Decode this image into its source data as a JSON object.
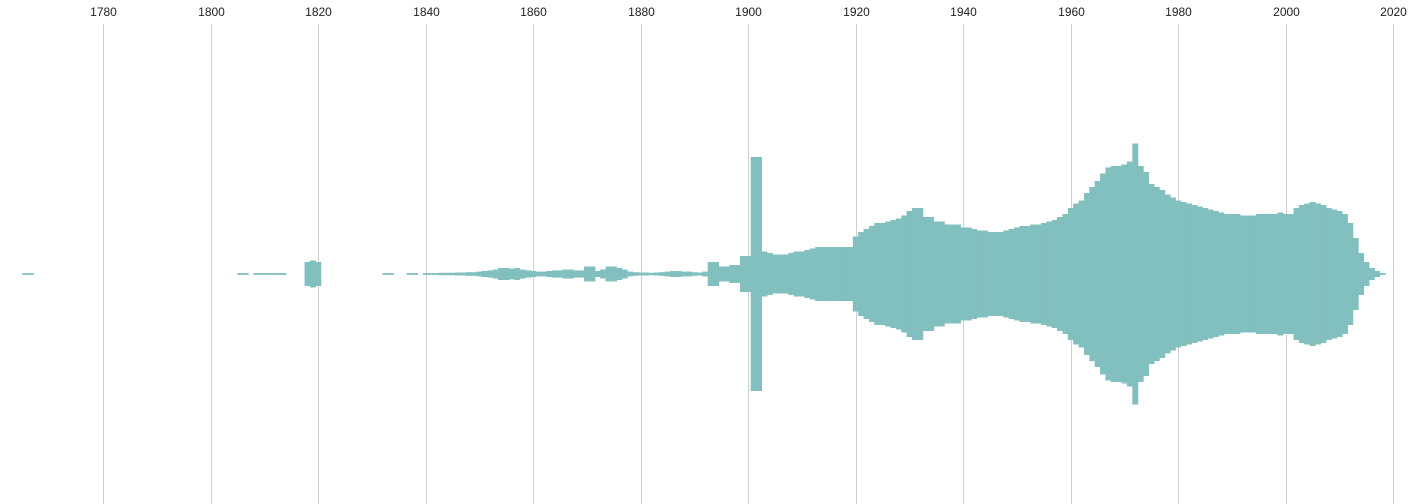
{
  "chart_data": {
    "type": "area",
    "title": "",
    "xlabel": "",
    "ylabel": "",
    "orientation": "symmetric-streamgraph",
    "xlim": [
      1760,
      2022
    ],
    "x_ticks": [
      1780,
      1800,
      1820,
      1840,
      1860,
      1880,
      1900,
      1920,
      1940,
      1960,
      1980,
      2000,
      2020
    ],
    "grid": true,
    "color": "#82bfbf",
    "series": [
      {
        "values": [
          [
            1765.5,
            0.3
          ],
          [
            1766.5,
            0.3
          ],
          [
            1805.5,
            0.3
          ],
          [
            1806.5,
            0.3
          ],
          [
            1808.5,
            0.3
          ],
          [
            1809.5,
            0.3
          ],
          [
            1810.5,
            0.3
          ],
          [
            1811.5,
            0.3
          ],
          [
            1812.5,
            0.3
          ],
          [
            1813.5,
            0.3
          ],
          [
            1818,
            4.0
          ],
          [
            1819,
            4.5
          ],
          [
            1820,
            4.0
          ],
          [
            1832.5,
            0.3
          ],
          [
            1833.5,
            0.3
          ],
          [
            1837,
            0.3
          ],
          [
            1838,
            0.3
          ],
          [
            1840,
            0.3
          ],
          [
            1841,
            0.3
          ],
          [
            1842,
            0.3
          ],
          [
            1843,
            0.4
          ],
          [
            1844,
            0.4
          ],
          [
            1845,
            0.4
          ],
          [
            1846,
            0.5
          ],
          [
            1847,
            0.5
          ],
          [
            1848,
            0.6
          ],
          [
            1849,
            0.6
          ],
          [
            1850,
            0.8
          ],
          [
            1851,
            1.0
          ],
          [
            1852,
            1.2
          ],
          [
            1853,
            1.5
          ],
          [
            1854,
            2.0
          ],
          [
            1855,
            2.0
          ],
          [
            1856,
            1.8
          ],
          [
            1857,
            2.0
          ],
          [
            1858,
            1.5
          ],
          [
            1859,
            1.2
          ],
          [
            1860,
            1.0
          ],
          [
            1861,
            0.8
          ],
          [
            1862,
            0.8
          ],
          [
            1863,
            1.0
          ],
          [
            1864,
            1.2
          ],
          [
            1865,
            1.2
          ],
          [
            1866,
            1.5
          ],
          [
            1867,
            1.5
          ],
          [
            1868,
            1.2
          ],
          [
            1869,
            1.2
          ],
          [
            1870,
            2.5
          ],
          [
            1871,
            2.5
          ],
          [
            1872,
            1.0
          ],
          [
            1873,
            1.5
          ],
          [
            1874,
            2.5
          ],
          [
            1875,
            2.5
          ],
          [
            1876,
            2.0
          ],
          [
            1877,
            1.5
          ],
          [
            1878,
            0.8
          ],
          [
            1879,
            0.6
          ],
          [
            1880,
            0.5
          ],
          [
            1881,
            0.5
          ],
          [
            1882,
            0.4
          ],
          [
            1883,
            0.5
          ],
          [
            1884,
            0.6
          ],
          [
            1885,
            0.8
          ],
          [
            1886,
            1.0
          ],
          [
            1887,
            1.0
          ],
          [
            1888,
            0.8
          ],
          [
            1889,
            0.8
          ],
          [
            1890,
            0.6
          ],
          [
            1891,
            0.5
          ],
          [
            1892,
            0.8
          ],
          [
            1893,
            4.0
          ],
          [
            1894,
            4.0
          ],
          [
            1895,
            2.5
          ],
          [
            1896,
            2.5
          ],
          [
            1897,
            3.0
          ],
          [
            1898,
            3.0
          ],
          [
            1899,
            6.0
          ],
          [
            1900,
            6.0
          ],
          [
            1901,
            39.0
          ],
          [
            1902,
            39.0
          ],
          [
            1903,
            7.5
          ],
          [
            1904,
            7.0
          ],
          [
            1905,
            6.5
          ],
          [
            1906,
            6.5
          ],
          [
            1907,
            6.5
          ],
          [
            1908,
            7.0
          ],
          [
            1909,
            7.5
          ],
          [
            1910,
            7.5
          ],
          [
            1911,
            8.0
          ],
          [
            1912,
            8.5
          ],
          [
            1913,
            9.0
          ],
          [
            1914,
            9.0
          ],
          [
            1915,
            9.0
          ],
          [
            1916,
            9.0
          ],
          [
            1917,
            9.0
          ],
          [
            1918,
            9.0
          ],
          [
            1919,
            9.0
          ],
          [
            1920,
            12.5
          ],
          [
            1921,
            14.0
          ],
          [
            1922,
            15.0
          ],
          [
            1923,
            16.0
          ],
          [
            1924,
            17.0
          ],
          [
            1925,
            17.0
          ],
          [
            1926,
            17.5
          ],
          [
            1927,
            18.0
          ],
          [
            1928,
            18.5
          ],
          [
            1929,
            19.5
          ],
          [
            1930,
            21.0
          ],
          [
            1931,
            22.0
          ],
          [
            1932,
            22.0
          ],
          [
            1933,
            19.0
          ],
          [
            1934,
            19.0
          ],
          [
            1935,
            17.5
          ],
          [
            1936,
            17.5
          ],
          [
            1937,
            16.5
          ],
          [
            1938,
            16.5
          ],
          [
            1939,
            16.5
          ],
          [
            1940,
            15.5
          ],
          [
            1941,
            15.5
          ],
          [
            1942,
            15.0
          ],
          [
            1943,
            14.5
          ],
          [
            1944,
            14.5
          ],
          [
            1945,
            14.0
          ],
          [
            1946,
            14.0
          ],
          [
            1947,
            14.0
          ],
          [
            1948,
            14.5
          ],
          [
            1949,
            15.0
          ],
          [
            1950,
            15.5
          ],
          [
            1951,
            16.0
          ],
          [
            1952,
            16.0
          ],
          [
            1953,
            16.5
          ],
          [
            1954,
            16.5
          ],
          [
            1955,
            17.0
          ],
          [
            1956,
            17.5
          ],
          [
            1957,
            18.0
          ],
          [
            1958,
            19.0
          ],
          [
            1959,
            20.0
          ],
          [
            1960,
            22.0
          ],
          [
            1961,
            23.5
          ],
          [
            1962,
            24.5
          ],
          [
            1963,
            27.0
          ],
          [
            1964,
            29.0
          ],
          [
            1965,
            31.0
          ],
          [
            1966,
            33.5
          ],
          [
            1967,
            35.5
          ],
          [
            1968,
            36.0
          ],
          [
            1969,
            36.0
          ],
          [
            1970,
            36.5
          ],
          [
            1971,
            37.5
          ],
          [
            1972,
            43.5
          ],
          [
            1973,
            36.0
          ],
          [
            1974,
            34.0
          ],
          [
            1975,
            30.0
          ],
          [
            1976,
            29.0
          ],
          [
            1977,
            28.0
          ],
          [
            1978,
            26.5
          ],
          [
            1979,
            25.5
          ],
          [
            1980,
            24.5
          ],
          [
            1981,
            24.0
          ],
          [
            1982,
            23.5
          ],
          [
            1983,
            23.0
          ],
          [
            1984,
            22.5
          ],
          [
            1985,
            22.0
          ],
          [
            1986,
            21.5
          ],
          [
            1987,
            21.0
          ],
          [
            1988,
            20.5
          ],
          [
            1989,
            20.0
          ],
          [
            1990,
            20.0
          ],
          [
            1991,
            20.0
          ],
          [
            1992,
            19.5
          ],
          [
            1993,
            19.5
          ],
          [
            1994,
            19.5
          ],
          [
            1995,
            20.0
          ],
          [
            1996,
            20.0
          ],
          [
            1997,
            20.0
          ],
          [
            1998,
            20.0
          ],
          [
            1999,
            20.5
          ],
          [
            2000,
            20.0
          ],
          [
            2001,
            20.0
          ],
          [
            2002,
            22.0
          ],
          [
            2003,
            23.0
          ],
          [
            2004,
            23.5
          ],
          [
            2005,
            24.0
          ],
          [
            2006,
            23.5
          ],
          [
            2007,
            23.0
          ],
          [
            2008,
            22.0
          ],
          [
            2009,
            21.5
          ],
          [
            2010,
            21.0
          ],
          [
            2011,
            20.0
          ],
          [
            2012,
            17.0
          ],
          [
            2013,
            12.0
          ],
          [
            2014,
            7.0
          ],
          [
            2015,
            4.0
          ],
          [
            2016,
            2.0
          ],
          [
            2017,
            1.0
          ],
          [
            2018,
            0.3
          ]
        ]
      }
    ]
  }
}
